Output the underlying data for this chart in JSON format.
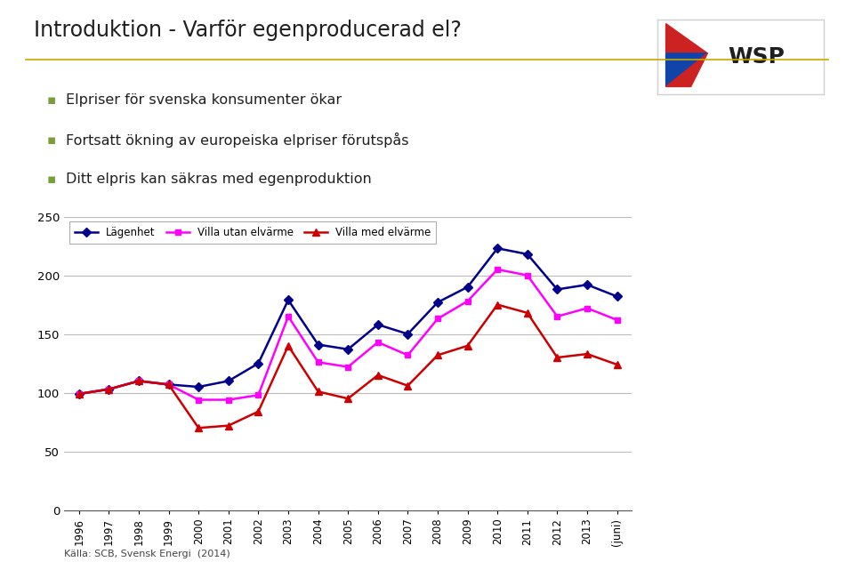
{
  "title_slide": "Introduktion - Varför egenproducerad el?",
  "bullets": [
    "Elpriser för svenska konsumenter ökar",
    "Fortsatt ökning av europeiska elpriser förutspås",
    "Ditt elpris kan säkras med egenproduktion"
  ],
  "source": "Källa: SCB, Svensk Energi  (2014)",
  "years": [
    "1996",
    "1997",
    "1998",
    "1999",
    "2000",
    "2001",
    "2002",
    "2003",
    "2004",
    "2005",
    "2006",
    "2007",
    "2008",
    "2009",
    "2010",
    "2011",
    "2012",
    "2013",
    "(juni)"
  ],
  "lagenhet": [
    99,
    103,
    110,
    107,
    105,
    110,
    125,
    179,
    141,
    137,
    158,
    150,
    177,
    190,
    223,
    218,
    188,
    192,
    182
  ],
  "villa_utan": [
    99,
    103,
    110,
    107,
    94,
    94,
    98,
    165,
    126,
    122,
    143,
    132,
    163,
    178,
    205,
    200,
    165,
    172,
    162
  ],
  "villa_med": [
    99,
    103,
    110,
    107,
    70,
    72,
    84,
    140,
    101,
    95,
    115,
    106,
    132,
    140,
    175,
    168,
    130,
    133,
    124
  ],
  "colors": {
    "lagenhet": "#00008B",
    "villa_utan": "#FF00FF",
    "villa_med": "#CC0000"
  },
  "ylim": [
    0,
    250
  ],
  "yticks": [
    0,
    50,
    100,
    150,
    200,
    250
  ],
  "background_color": "#FFFFFF",
  "bullet_color": "#7A9E3B",
  "title_color": "#1F1F1F",
  "legend_labels": [
    "Lägenhet",
    "Villa utan elvärme",
    "Villa med elvärme"
  ]
}
